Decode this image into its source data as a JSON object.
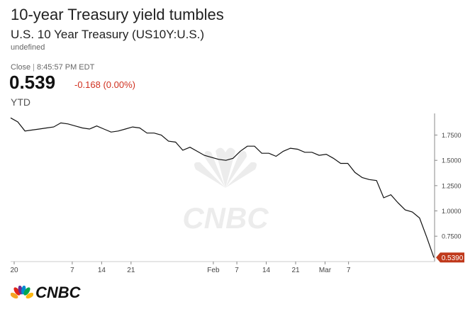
{
  "header": {
    "headline": "10-year Treasury yield tumbles",
    "symbol_title": "U.S. 10 Year Treasury (US10Y:U.S.)",
    "undefined_label": "undefined",
    "close_label": "Close",
    "close_time": "8:45:57 PM EDT",
    "price": "0.539",
    "change": "-0.168 (0.00%)",
    "range": "YTD"
  },
  "brand": {
    "name": "CNBC"
  },
  "colors": {
    "line": "#111111",
    "change_negative": "#d0301f",
    "last_badge": "#c0391b",
    "axis": "#888888"
  },
  "chart_data": {
    "type": "line",
    "title": "10-year Treasury yield tumbles",
    "last_value_label": "0.5390",
    "x_ticks": [
      "20",
      "7",
      "14",
      "21",
      "Feb",
      "7",
      "14",
      "21",
      "Mar",
      "7"
    ],
    "y_ticks": [
      "1.7500",
      "1.5000",
      "1.2500",
      "1.0000",
      "0.7500"
    ],
    "ylim": [
      0.52,
      1.95
    ],
    "grid": false,
    "series": [
      {
        "values": [
          1.92,
          1.88,
          1.79,
          1.8,
          1.81,
          1.82,
          1.83,
          1.87,
          1.86,
          1.84,
          1.82,
          1.81,
          1.84,
          1.81,
          1.78,
          1.79,
          1.81,
          1.83,
          1.82,
          1.77,
          1.77,
          1.75,
          1.69,
          1.68,
          1.6,
          1.63,
          1.59,
          1.55,
          1.53,
          1.51,
          1.5,
          1.52,
          1.59,
          1.64,
          1.64,
          1.57,
          1.57,
          1.54,
          1.59,
          1.62,
          1.61,
          1.58,
          1.58,
          1.55,
          1.56,
          1.52,
          1.47,
          1.47,
          1.38,
          1.33,
          1.31,
          1.3,
          1.13,
          1.16,
          1.08,
          1.01,
          0.99,
          0.93,
          0.74,
          0.539
        ]
      }
    ]
  }
}
